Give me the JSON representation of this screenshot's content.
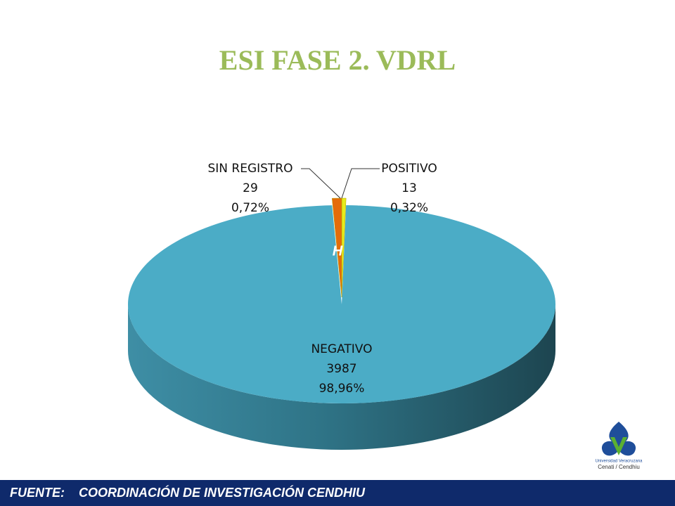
{
  "chart_data": {
    "type": "pie3d",
    "title": "ESI FASE 2. VDRL",
    "categories": [
      "POSITIVO",
      "NEGATIVO",
      "SIN REGISTRO"
    ],
    "values": [
      13,
      3987,
      29
    ],
    "percent_labels": [
      "0,32%",
      "98,96%",
      "0,72%"
    ],
    "colors": [
      "#e6ec1c",
      "#4bacc6",
      "#e46c0a"
    ],
    "annotation": "H"
  },
  "footer": {
    "label": "FUENTE:",
    "text": "COORDINACIÓN DE INVESTIGACIÓN CENDHIU"
  },
  "logo": {
    "name": "Universidad Veracruzana",
    "unit": "Cenati / Cendhiu"
  }
}
